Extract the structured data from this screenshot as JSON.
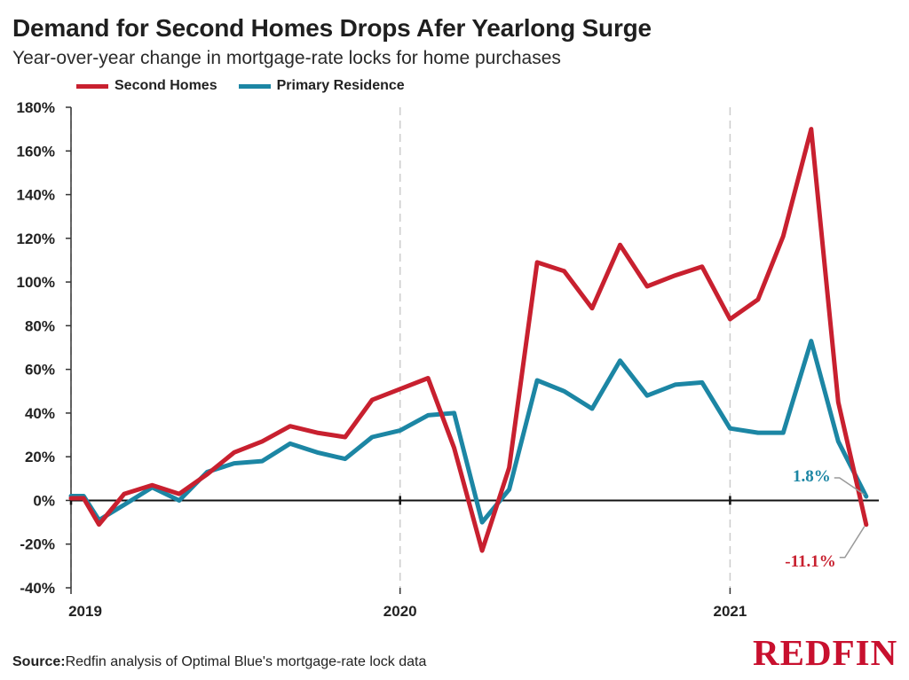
{
  "title": "Demand for Second Homes Drops Afer Yearlong Surge",
  "subtitle": "Year-over-year change in mortgage-rate locks for home purchases",
  "source": {
    "label": "Source:",
    "text": "Redfin analysis of Optimal Blue's mortgage-rate lock data"
  },
  "logo_text": "REDFIN",
  "colors": {
    "second_homes": "#c8202f",
    "primary_residence": "#1c86a4",
    "axis": "#111111",
    "grid": "#cccccc",
    "logo": "#c8102e"
  },
  "chart_data": {
    "type": "line",
    "title": "Demand for Second Homes Drops Afer Yearlong Surge",
    "subtitle": "Year-over-year change in mortgage-rate locks for home purchases",
    "xlabel": "",
    "ylabel": "",
    "x": [
      "2019-01-01",
      "2019-01-15",
      "2019-02-01",
      "2019-02-15",
      "2019-03-01",
      "2019-03-15",
      "2019-04-01",
      "2019-04-15",
      "2019-05-01",
      "2019-05-15",
      "2019-06-01",
      "2019-06-15",
      "2019-07-01",
      "2019-07-15",
      "2019-08-01",
      "2019-08-15",
      "2019-09-01",
      "2019-09-15",
      "2019-10-01",
      "2019-10-15",
      "2019-11-01",
      "2019-11-15",
      "2019-12-01",
      "2019-12-15",
      "2020-01-01",
      "2020-01-15",
      "2020-02-01",
      "2020-02-15",
      "2020-03-01",
      "2020-03-15",
      "2020-04-01",
      "2020-04-15",
      "2020-05-01",
      "2020-05-15",
      "2020-06-01",
      "2020-06-15",
      "2020-07-01",
      "2020-07-15",
      "2020-08-01",
      "2020-08-15",
      "2020-09-01",
      "2020-09-15",
      "2020-10-01",
      "2020-10-15",
      "2020-11-01",
      "2020-11-15",
      "2020-12-01",
      "2020-12-15",
      "2021-01-01",
      "2021-01-15",
      "2021-02-01",
      "2021-02-15",
      "2021-03-01",
      "2021-03-15",
      "2021-04-01",
      "2021-04-15",
      "2021-05-01",
      "2021-05-15",
      "2021-06-01"
    ],
    "ylim": [
      -40,
      180
    ],
    "y_ticks": [
      -40,
      -20,
      0,
      20,
      40,
      60,
      80,
      100,
      120,
      140,
      160,
      180
    ],
    "y_tick_labels": [
      "-40%",
      "-20%",
      "0%",
      "20%",
      "40%",
      "60%",
      "80%",
      "100%",
      "120%",
      "140%",
      "160%",
      "180%"
    ],
    "x_ticks": [
      "2019",
      "2020",
      "2021"
    ],
    "x_tick_dates": [
      "2019-01-01",
      "2020-01-01",
      "2021-01-01"
    ],
    "x_range": [
      "2019-01-01",
      "2021-06-15"
    ],
    "grid": "vertical dashed at year starts",
    "legend": "top-left",
    "series": [
      {
        "name": "Second Homes",
        "color": "#c8202f",
        "points": [
          [
            "2019-01-01",
            1
          ],
          [
            "2019-01-15",
            1
          ],
          [
            "2019-02-01",
            -11
          ],
          [
            "2019-03-01",
            3
          ],
          [
            "2019-04-01",
            7
          ],
          [
            "2019-05-01",
            3
          ],
          [
            "2019-06-01",
            12
          ],
          [
            "2019-07-01",
            22
          ],
          [
            "2019-08-01",
            27
          ],
          [
            "2019-09-01",
            34
          ],
          [
            "2019-10-01",
            31
          ],
          [
            "2019-11-01",
            29
          ],
          [
            "2019-12-01",
            46
          ],
          [
            "2020-01-01",
            51
          ],
          [
            "2020-02-01",
            56
          ],
          [
            "2020-03-01",
            24
          ],
          [
            "2020-04-01",
            -23
          ],
          [
            "2020-05-01",
            15
          ],
          [
            "2020-06-01",
            109
          ],
          [
            "2020-07-01",
            105
          ],
          [
            "2020-08-01",
            88
          ],
          [
            "2020-09-01",
            117
          ],
          [
            "2020-10-01",
            98
          ],
          [
            "2020-11-01",
            103
          ],
          [
            "2020-12-01",
            107
          ],
          [
            "2021-01-01",
            83
          ],
          [
            "2021-02-01",
            92
          ],
          [
            "2021-03-01",
            121
          ],
          [
            "2021-04-01",
            170
          ],
          [
            "2021-05-01",
            45
          ],
          [
            "2021-06-01",
            -11.1
          ]
        ]
      },
      {
        "name": "Primary Residence",
        "color": "#1c86a4",
        "points": [
          [
            "2019-01-01",
            2
          ],
          [
            "2019-01-15",
            2
          ],
          [
            "2019-02-01",
            -9
          ],
          [
            "2019-03-01",
            -2
          ],
          [
            "2019-04-01",
            6
          ],
          [
            "2019-05-01",
            0
          ],
          [
            "2019-06-01",
            13
          ],
          [
            "2019-07-01",
            17
          ],
          [
            "2019-08-01",
            18
          ],
          [
            "2019-09-01",
            26
          ],
          [
            "2019-10-01",
            22
          ],
          [
            "2019-11-01",
            19
          ],
          [
            "2019-12-01",
            29
          ],
          [
            "2020-01-01",
            32
          ],
          [
            "2020-02-01",
            39
          ],
          [
            "2020-03-01",
            40
          ],
          [
            "2020-04-01",
            -10
          ],
          [
            "2020-05-01",
            5
          ],
          [
            "2020-06-01",
            55
          ],
          [
            "2020-07-01",
            50
          ],
          [
            "2020-08-01",
            42
          ],
          [
            "2020-09-01",
            64
          ],
          [
            "2020-10-01",
            48
          ],
          [
            "2020-11-01",
            53
          ],
          [
            "2020-12-01",
            54
          ],
          [
            "2021-01-01",
            33
          ],
          [
            "2021-02-01",
            31
          ],
          [
            "2021-03-01",
            31
          ],
          [
            "2021-04-01",
            73
          ],
          [
            "2021-05-01",
            27
          ],
          [
            "2021-06-01",
            1.8
          ]
        ]
      }
    ],
    "annotations": [
      {
        "text": "1.8%",
        "series": "Primary Residence",
        "date": "2021-06-01",
        "value": 1.8,
        "color": "#1c86a4"
      },
      {
        "text": "-11.1%",
        "series": "Second Homes",
        "date": "2021-06-01",
        "value": -11.1,
        "color": "#c8202f"
      }
    ]
  }
}
